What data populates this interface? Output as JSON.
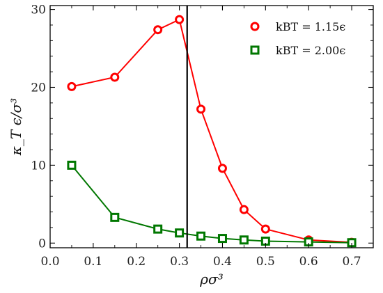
{
  "chart_data": {
    "type": "line",
    "xlabel": "ρσ³",
    "ylabel": "κ_T ϵ/σ³",
    "xlim": [
      0.0,
      0.75
    ],
    "ylim": [
      -0.6,
      30.5
    ],
    "x_ticks": [
      0.0,
      0.1,
      0.2,
      0.3,
      0.4,
      0.5,
      0.6,
      0.7
    ],
    "x_tick_labels": [
      "0.0",
      "0.1",
      "0.2",
      "0.3",
      "0.4",
      "0.5",
      "0.6",
      "0.7"
    ],
    "y_ticks": [
      0,
      10,
      20,
      30
    ],
    "y_tick_labels": [
      "0",
      "10",
      "20",
      "30"
    ],
    "grid": false,
    "legend_position": "top-right",
    "vertical_line_x": 0.318,
    "series": [
      {
        "name": "k_B T = 1.15ϵ",
        "legend_label": "kBT = 1.15ϵ",
        "color": "#ff0000",
        "marker": "circle",
        "x": [
          0.05,
          0.15,
          0.25,
          0.3,
          0.35,
          0.4,
          0.45,
          0.5,
          0.6,
          0.7
        ],
        "y": [
          20.1,
          21.3,
          27.4,
          28.7,
          17.2,
          9.6,
          4.3,
          1.8,
          0.4,
          0.1
        ]
      },
      {
        "name": "k_B T = 2.00ϵ",
        "legend_label": "kBT = 2.00ϵ",
        "color": "#007700",
        "marker": "square",
        "x": [
          0.05,
          0.15,
          0.25,
          0.3,
          0.35,
          0.4,
          0.45,
          0.5,
          0.6,
          0.7
        ],
        "y": [
          10.0,
          3.3,
          1.8,
          1.3,
          0.9,
          0.6,
          0.4,
          0.25,
          0.15,
          0.05
        ]
      }
    ]
  }
}
